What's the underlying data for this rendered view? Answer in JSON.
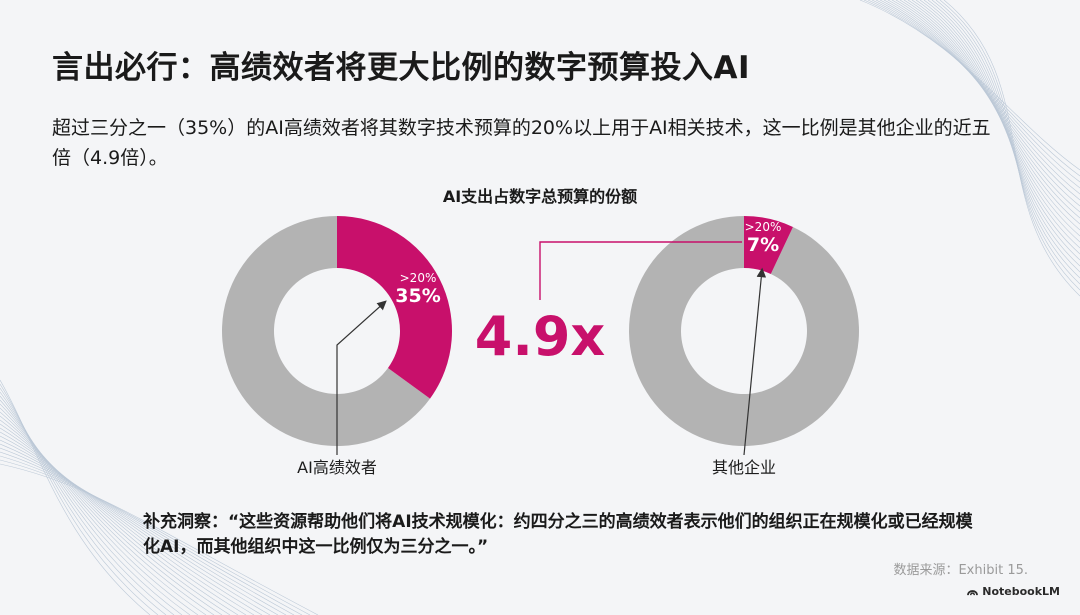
{
  "slide": {
    "title": "言出必行：高绩效者将更大比例的数字预算投入AI",
    "subtitle": "超过三分之一（35%）的AI高绩效者将其数字技术预算的20%以上用于AI相关技术，这一比例是其他企业的近五倍（4.9倍）。",
    "insight": "补充洞察：“这些资源帮助他们将AI技术规模化：约四分之三的高绩效者表示他们的组织正在规模化或已经规模化AI，而其他组织中这一比例仅为三分之一。”",
    "source": "数据来源：Exhibit 15.",
    "brand": "NotebookLM",
    "brand_icon": "notebooklm-logo-icon"
  },
  "chart_data": {
    "type": "pie",
    "title": "AI支出占数字总预算的份额",
    "multiplier_label": "4.9x",
    "colors": {
      "highlight": "#c8106b",
      "rest": "#b3b3b3"
    },
    "donuts": [
      {
        "name": "AI高绩效者",
        "value": 35,
        "value_label": "35%",
        "threshold_label": ">20%"
      },
      {
        "name": "其他企业",
        "value": 7,
        "value_label": "7%",
        "threshold_label": ">20%"
      }
    ]
  }
}
